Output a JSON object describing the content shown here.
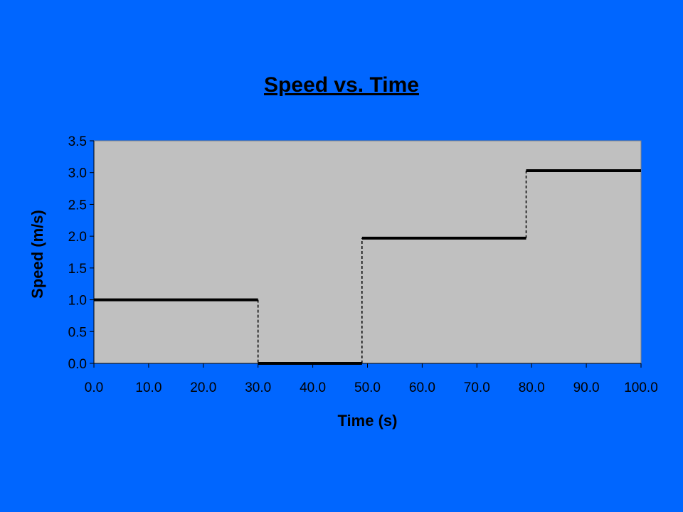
{
  "chart_data": {
    "type": "line",
    "title": "Speed vs. Time",
    "xlabel": "Time (s)",
    "ylabel": "Speed (m/s)",
    "xlim": [
      0,
      100
    ],
    "ylim": [
      0,
      3.5
    ],
    "x_ticks": [
      "0.0",
      "10.0",
      "20.0",
      "30.0",
      "40.0",
      "50.0",
      "60.0",
      "70.0",
      "80.0",
      "90.0",
      "100.0"
    ],
    "y_ticks": [
      "0.0",
      "0.5",
      "1.0",
      "1.5",
      "2.0",
      "2.5",
      "3.0",
      "3.5"
    ],
    "grid": false,
    "legend": "none",
    "plot_background": "#c0c0c0",
    "page_background": "#0066ff",
    "line_color": "#000000",
    "segments": [
      {
        "x": [
          0,
          30
        ],
        "y": [
          1.0,
          1.0
        ]
      },
      {
        "x": [
          30,
          49
        ],
        "y": [
          0.0,
          0.0
        ]
      },
      {
        "x": [
          49,
          79
        ],
        "y": [
          1.97,
          1.97
        ]
      },
      {
        "x": [
          79,
          100
        ],
        "y": [
          3.03,
          3.03
        ]
      }
    ],
    "transitions": [
      {
        "x": 30,
        "y": [
          1.0,
          0.0
        ]
      },
      {
        "x": 49,
        "y": [
          0.0,
          1.97
        ]
      },
      {
        "x": 79,
        "y": [
          1.97,
          3.03
        ]
      }
    ]
  }
}
